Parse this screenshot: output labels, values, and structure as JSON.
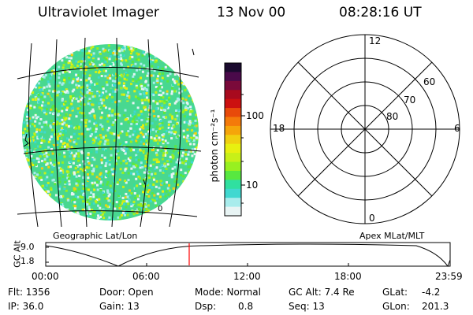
{
  "header": {
    "title": "Ultraviolet Imager",
    "date": "13 Nov 00",
    "time": "08:28:16 UT"
  },
  "colorbar": {
    "unit_label": "photon cm⁻²s⁻¹",
    "ticks": [
      "100",
      "10"
    ],
    "colors": [
      "#1a0a2e",
      "#4a0a4a",
      "#7a0a3a",
      "#a80a1e",
      "#cc1010",
      "#e84a0a",
      "#f47a0a",
      "#f5a50a",
      "#f0d010",
      "#e8f010",
      "#c8f018",
      "#98f020",
      "#58e840",
      "#30e0a0",
      "#40d8d0",
      "#a8ecec",
      "#e8f4f4"
    ]
  },
  "image_panel": {
    "label": "Geographic Lat/Lon",
    "tick_label": "0"
  },
  "polar_panel": {
    "label": "Apex MLat/MLT",
    "mlt_labels": {
      "top": "12",
      "bottom": "0",
      "left": "18",
      "right": "6"
    },
    "mlat_labels": [
      "60",
      "70",
      "80"
    ]
  },
  "timeline": {
    "y_axis_label": "GC Alt",
    "y_ticks": [
      "9.0",
      "1.8"
    ],
    "x_ticks": [
      "00:00",
      "06:00",
      "12:00",
      "18:00",
      "23:59"
    ],
    "marker_time": "08:28:16",
    "marker_color": "#ff0000"
  },
  "status": {
    "flt_label": "Flt: 1356",
    "ip_label": "IP: 36.0",
    "door_label": "Door: Open",
    "gain_label": "Gain: 13",
    "mode_label": "Mode: Normal",
    "dsp_label": "Dsp:",
    "dsp_value": "0.8",
    "gcalt_label": "GC Alt: 7.4 Re",
    "seq_label": "Seq: 13",
    "glat_label": "GLat:",
    "glat_value": "-4.2",
    "glon_label": "GLon:",
    "glon_value": "201.3"
  }
}
